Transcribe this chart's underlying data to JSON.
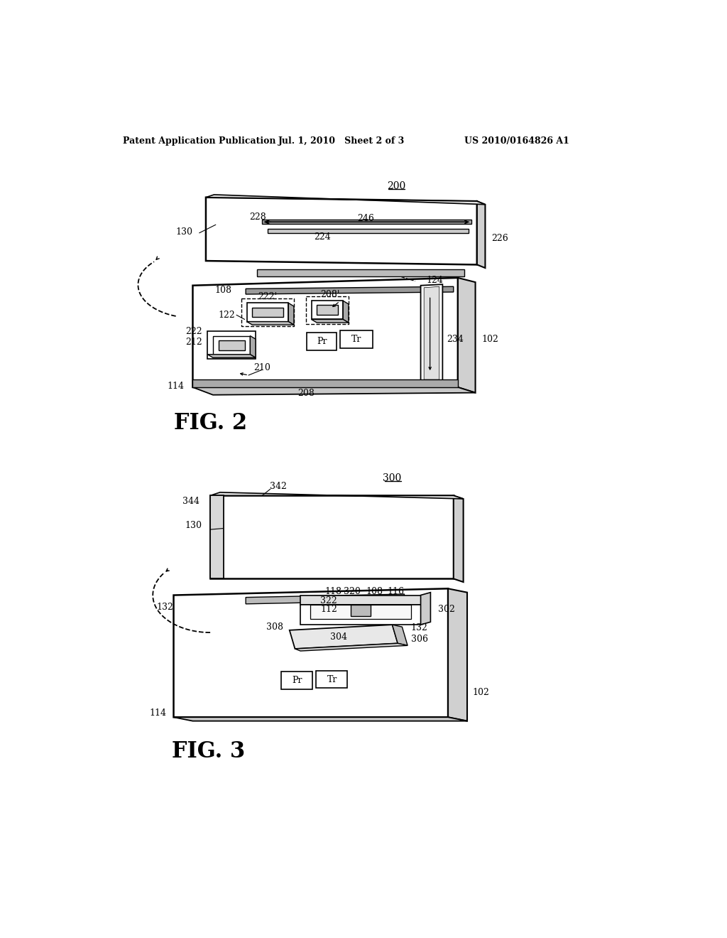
{
  "bg_color": "#ffffff",
  "header_left": "Patent Application Publication",
  "header_mid": "Jul. 1, 2010   Sheet 2 of 3",
  "header_right": "US 2010/0164826 A1",
  "fig2_label": "FIG. 2",
  "fig3_label": "FIG. 3",
  "fig2_ref": "200",
  "fig3_ref": "300"
}
